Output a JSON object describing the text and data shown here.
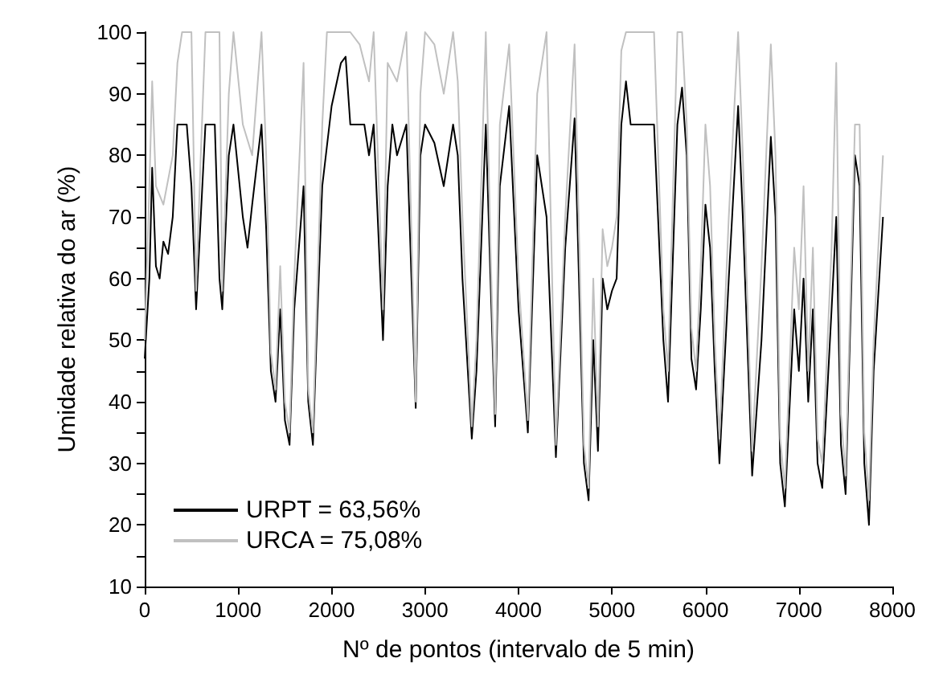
{
  "chart_data": {
    "type": "line",
    "xlabel": "Nº de pontos (intervalo de 5 min)",
    "ylabel": "Umidade relativa do ar (%)",
    "xlim": [
      0,
      8000
    ],
    "xticks": [
      0,
      1000,
      2000,
      3000,
      4000,
      5000,
      6000,
      7000,
      8000
    ],
    "ylim": [
      10,
      100
    ],
    "yticks": [
      10,
      20,
      30,
      40,
      50,
      60,
      70,
      80,
      90,
      100
    ],
    "grid": false,
    "legend": "bottom left",
    "marker": "none",
    "line_style": "solid",
    "series": [
      {
        "name": "URPT = 63,56%",
        "color": "#000000",
        "x": [
          0,
          50,
          80,
          120,
          160,
          200,
          250,
          300,
          350,
          450,
          500,
          550,
          600,
          650,
          750,
          800,
          830,
          900,
          950,
          1050,
          1100,
          1150,
          1250,
          1300,
          1350,
          1400,
          1450,
          1500,
          1550,
          1600,
          1700,
          1750,
          1800,
          1850,
          1900,
          2000,
          2100,
          2150,
          2200,
          2350,
          2400,
          2450,
          2550,
          2600,
          2650,
          2700,
          2800,
          2900,
          2950,
          3000,
          3100,
          3200,
          3300,
          3350,
          3400,
          3500,
          3550,
          3650,
          3700,
          3750,
          3800,
          3900,
          4000,
          4100,
          4200,
          4300,
          4400,
          4500,
          4600,
          4700,
          4750,
          4800,
          4850,
          4900,
          4950,
          5000,
          5050,
          5100,
          5150,
          5200,
          5450,
          5550,
          5600,
          5700,
          5750,
          5800,
          5850,
          5900,
          5950,
          6000,
          6050,
          6100,
          6150,
          6250,
          6350,
          6400,
          6500,
          6600,
          6700,
          6750,
          6800,
          6850,
          6950,
          7000,
          7050,
          7100,
          7150,
          7200,
          7250,
          7350,
          7400,
          7450,
          7500,
          7600,
          7650,
          7700,
          7750,
          7800,
          7900
        ],
        "values": [
          47,
          60,
          78,
          62,
          60,
          66,
          64,
          70,
          85,
          85,
          75,
          55,
          70,
          85,
          85,
          60,
          55,
          80,
          85,
          70,
          65,
          72,
          85,
          68,
          45,
          40,
          55,
          37,
          33,
          55,
          75,
          40,
          33,
          55,
          75,
          88,
          95,
          96,
          85,
          85,
          80,
          85,
          50,
          75,
          85,
          80,
          85,
          39,
          80,
          85,
          82,
          75,
          85,
          80,
          60,
          34,
          45,
          85,
          60,
          36,
          75,
          88,
          55,
          35,
          80,
          70,
          31,
          65,
          86,
          30,
          24,
          50,
          32,
          60,
          55,
          58,
          60,
          85,
          92,
          85,
          85,
          50,
          40,
          85,
          91,
          80,
          47,
          42,
          55,
          72,
          65,
          45,
          30,
          60,
          88,
          70,
          28,
          50,
          83,
          70,
          30,
          23,
          55,
          45,
          60,
          40,
          55,
          30,
          26,
          55,
          70,
          33,
          25,
          80,
          75,
          30,
          20,
          45,
          70
        ]
      },
      {
        "name": "URCA = 75,08%",
        "color": "#c0c0c0",
        "x": [
          0,
          50,
          80,
          120,
          200,
          300,
          350,
          400,
          500,
          550,
          600,
          650,
          800,
          830,
          900,
          950,
          1050,
          1150,
          1250,
          1300,
          1350,
          1400,
          1450,
          1500,
          1550,
          1600,
          1700,
          1750,
          1800,
          1850,
          1900,
          1950,
          2200,
          2300,
          2400,
          2450,
          2550,
          2600,
          2700,
          2800,
          2900,
          2950,
          3000,
          3100,
          3200,
          3300,
          3350,
          3400,
          3500,
          3550,
          3650,
          3700,
          3750,
          3800,
          3900,
          4000,
          4100,
          4200,
          4300,
          4400,
          4500,
          4600,
          4700,
          4750,
          4800,
          4850,
          4900,
          4950,
          5000,
          5050,
          5100,
          5150,
          5450,
          5550,
          5600,
          5700,
          5750,
          5800,
          5850,
          5900,
          5950,
          6000,
          6050,
          6100,
          6150,
          6250,
          6350,
          6400,
          6500,
          6600,
          6700,
          6750,
          6800,
          6850,
          6950,
          7000,
          7050,
          7100,
          7150,
          7200,
          7250,
          7350,
          7400,
          7450,
          7500,
          7600,
          7650,
          7700,
          7750,
          7800,
          7900
        ],
        "values": [
          50,
          75,
          92,
          75,
          72,
          80,
          95,
          100,
          100,
          58,
          80,
          100,
          100,
          58,
          90,
          100,
          85,
          80,
          100,
          80,
          48,
          42,
          62,
          40,
          35,
          60,
          95,
          42,
          35,
          60,
          85,
          100,
          100,
          98,
          92,
          100,
          55,
          95,
          92,
          100,
          40,
          90,
          100,
          98,
          90,
          100,
          92,
          70,
          36,
          50,
          100,
          65,
          38,
          85,
          98,
          60,
          37,
          90,
          100,
          33,
          70,
          98,
          33,
          26,
          60,
          36,
          68,
          62,
          65,
          70,
          97,
          100,
          100,
          55,
          45,
          100,
          100,
          85,
          52,
          45,
          62,
          85,
          75,
          50,
          34,
          70,
          100,
          80,
          32,
          62,
          98,
          80,
          34,
          26,
          65,
          55,
          75,
          45,
          65,
          34,
          30,
          65,
          95,
          38,
          28,
          85,
          85,
          35,
          24,
          50,
          80
        ]
      }
    ]
  }
}
